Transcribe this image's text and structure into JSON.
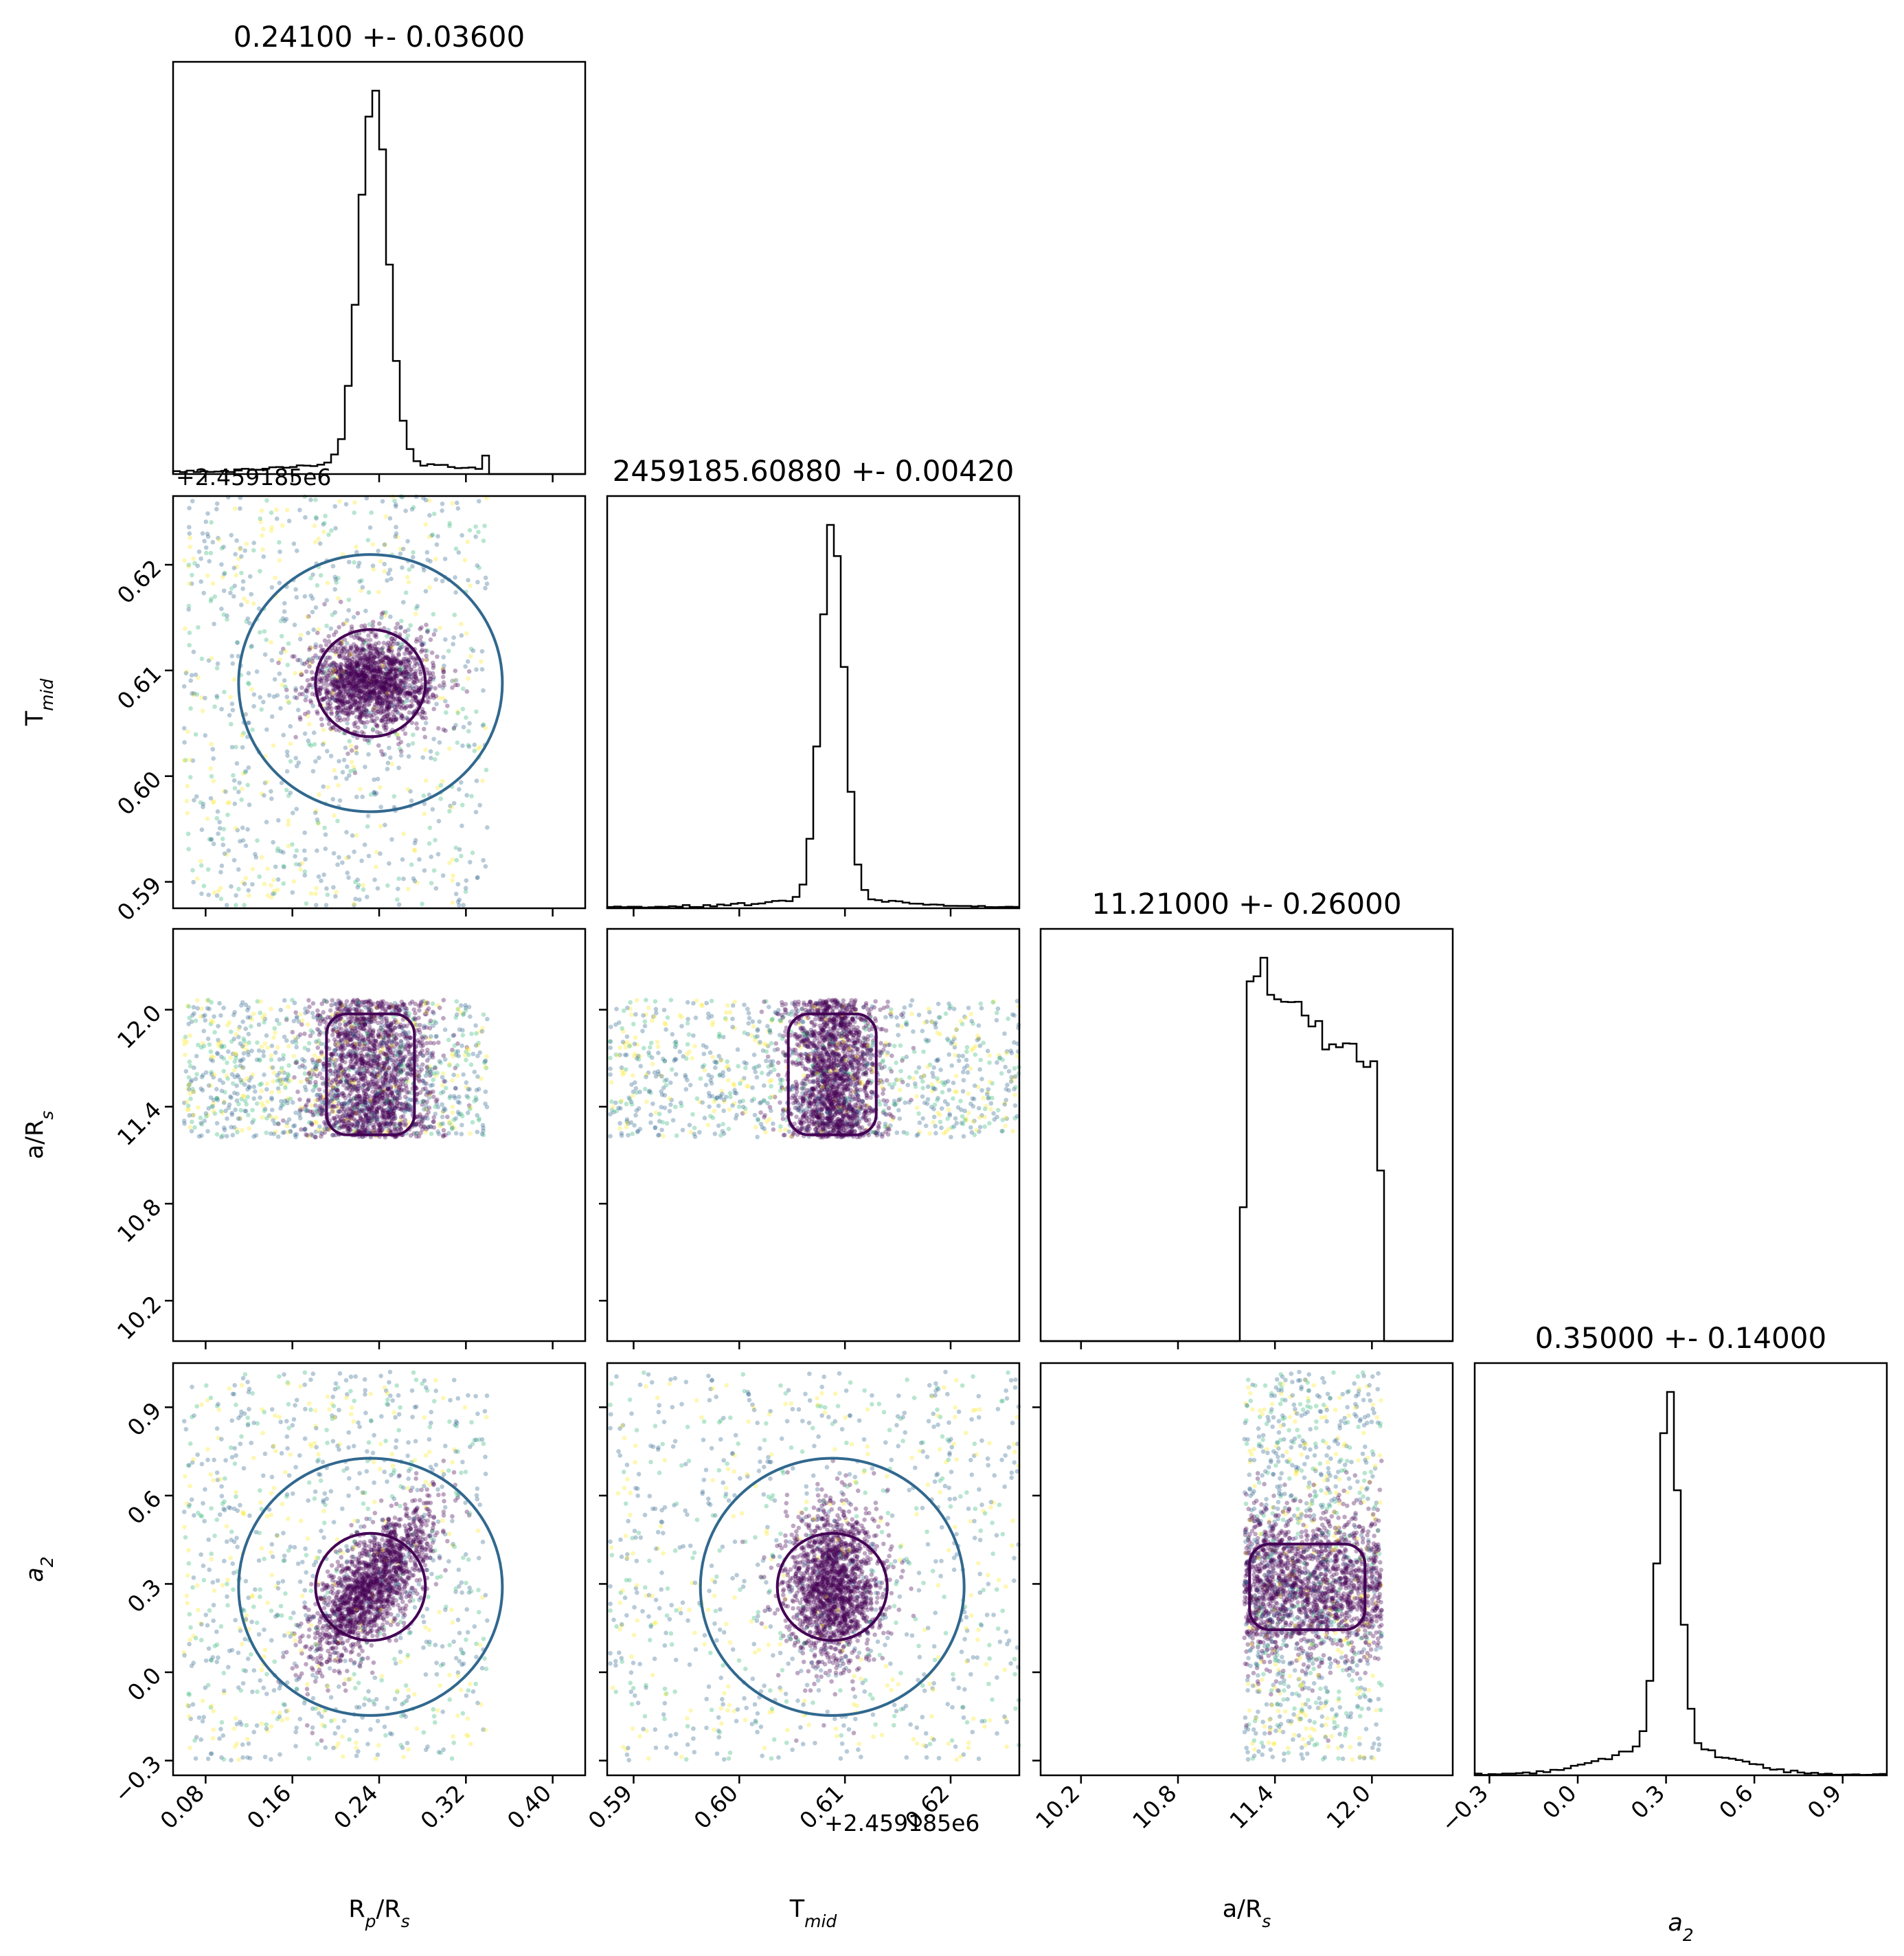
{
  "chart_data": {
    "type": "corner",
    "parameters": [
      {
        "key": "rp",
        "label_main": "R",
        "label_sub": "p",
        "label_rest": "/R",
        "label_rest_sub": "s",
        "title": "0.24100 +- 0.03600",
        "range": [
          0.05,
          0.43
        ],
        "ticks": [
          "0.08",
          "0.16",
          "0.24",
          "0.32",
          "0.40"
        ],
        "offset": ""
      },
      {
        "key": "tmid",
        "label_main": "T",
        "label_sub": "mid",
        "label_rest": "",
        "label_rest_sub": "",
        "title": "2459185.60880 +- 0.00420",
        "range": [
          0.5875,
          0.6265
        ],
        "ticks": [
          "0.59",
          "0.60",
          "0.61",
          "0.62"
        ],
        "offset": "+2.459185e6"
      },
      {
        "key": "ars",
        "label_main": "a/R",
        "label_sub": "s",
        "label_rest": "",
        "label_rest_sub": "",
        "title": "11.21000 +- 0.26000",
        "range": [
          9.95,
          12.5
        ],
        "ticks": [
          "10.2",
          "10.8",
          "11.4",
          "12.0"
        ],
        "offset": ""
      },
      {
        "key": "a2",
        "label_main": "a",
        "label_sub": "2",
        "label_rest": "",
        "label_rest_sub": "",
        "italic": true,
        "title": "0.35000 +- 0.14000",
        "range": [
          -0.35,
          1.05
        ],
        "ticks": [
          "−0.3",
          "0.0",
          "0.3",
          "0.6",
          "0.9"
        ],
        "offset": ""
      }
    ],
    "histograms": {
      "rp": {
        "mean": 0.235,
        "sigma": 0.013,
        "tail": 0.12,
        "tail_sigma": 0.07,
        "floor": 0.03,
        "support": [
          0.05,
          0.34
        ]
      },
      "tmid": {
        "mean": 0.6088,
        "sigma": 0.0011,
        "tail": 0.1,
        "tail_sigma": 0.006,
        "floor": 0.04,
        "support": [
          0.5875,
          0.6265
        ]
      },
      "ars": {
        "flat_support": [
          11.21,
          12.06
        ],
        "peak": 11.25,
        "decay": 0.45
      },
      "a2": {
        "mean": 0.31,
        "sigma": 0.035,
        "tail": 0.3,
        "tail_sigma": 0.2,
        "floor": 0.02,
        "support": [
          -0.35,
          1.05
        ]
      }
    },
    "colormap": [
      "#440154",
      "#31688e",
      "#35b779",
      "#fde725"
    ],
    "grid": false
  }
}
